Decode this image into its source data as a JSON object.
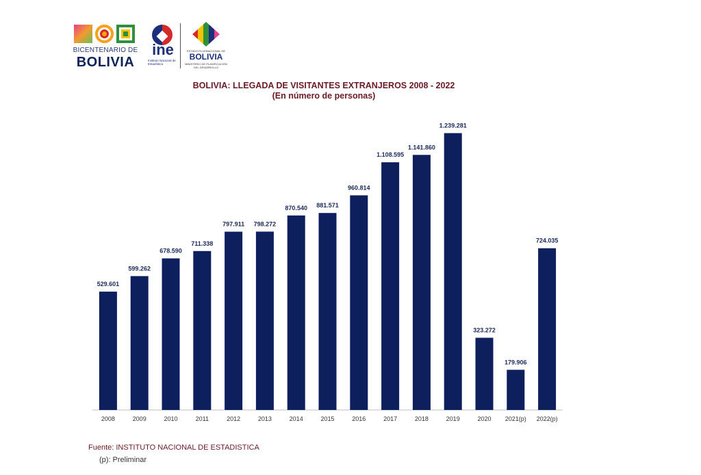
{
  "logos": {
    "bicentenario_top": "BICENTENARIO DE",
    "bicentenario_main": "BOLIVIA",
    "ine_word": "ine",
    "ine_subtitle": "Instituto Nacional de Estadística",
    "ministry_small": "ESTADO PLURINACIONAL DE",
    "ministry_name": "BOLIVIA",
    "ministry_small2": "MINISTERIO DE PLANIFICACIÓN DEL DESARROLLO"
  },
  "colors": {
    "bar": "#0d1f5c",
    "title": "#6a1a24",
    "axis": "#333333"
  },
  "chart_data": {
    "type": "bar",
    "title": "BOLIVIA: LLEGADA DE VISITANTES EXTRANJEROS 2008  - 2022",
    "subtitle": "(En número de personas)",
    "categories": [
      "2008",
      "2009",
      "2010",
      "2011",
      "2012",
      "2013",
      "2014",
      "2015",
      "2016",
      "2017",
      "2018",
      "2019",
      "2020",
      "2021(p)",
      "2022(p)"
    ],
    "values": [
      529601,
      599262,
      678590,
      711338,
      797911,
      798272,
      870540,
      881571,
      960814,
      1108595,
      1141860,
      1239281,
      323272,
      179906,
      724035
    ],
    "labels": [
      "529.601",
      "599.262",
      "678.590",
      "711.338",
      "797.911",
      "798.272",
      "870.540",
      "881.571",
      "960.814",
      "1.108.595",
      "1.141.860",
      "1.239.281",
      "323.272",
      "179.906",
      "724.035"
    ],
    "ylim": [
      0,
      1400000
    ],
    "grid": false,
    "legend": "none"
  },
  "footer": {
    "source": "Fuente: INSTITUTO NACIONAL DE ESTADISTICA",
    "note": "(p): Preliminar"
  }
}
